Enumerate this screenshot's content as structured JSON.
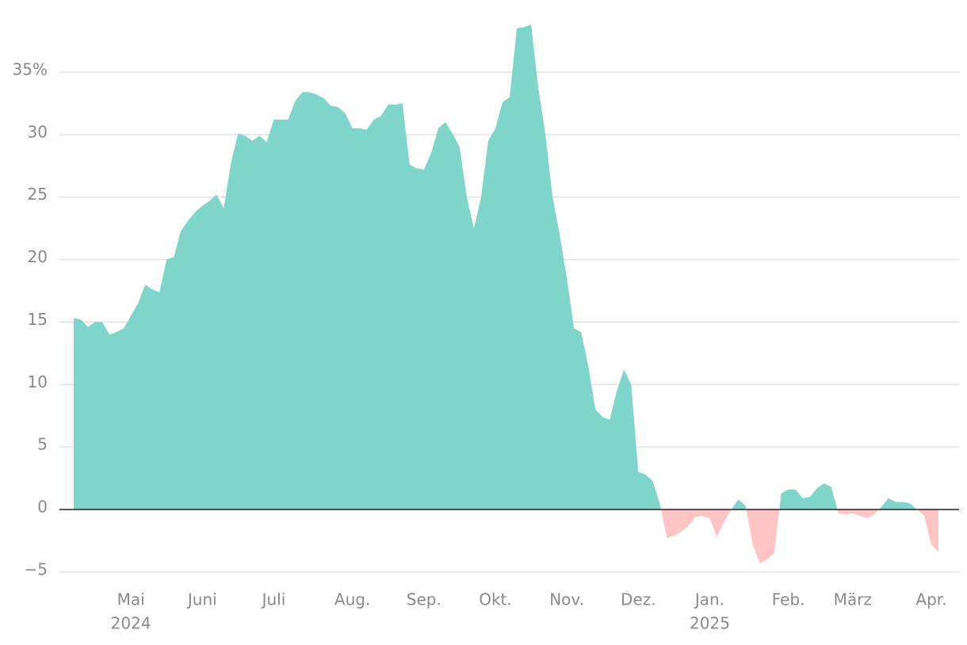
{
  "chart_data": {
    "type": "area",
    "categories": [
      null,
      null,
      null,
      null,
      null,
      null,
      null,
      null,
      "Mai",
      null,
      null,
      null,
      null,
      null,
      null,
      null,
      null,
      null,
      "Juni",
      null,
      null,
      null,
      null,
      null,
      null,
      null,
      null,
      null,
      "Juli",
      null,
      null,
      null,
      null,
      null,
      null,
      null,
      null,
      null,
      null,
      "Aug.",
      null,
      null,
      null,
      null,
      null,
      null,
      null,
      null,
      null,
      "Sep.",
      null,
      null,
      null,
      null,
      null,
      null,
      null,
      null,
      null,
      "Okt.",
      null,
      null,
      null,
      null,
      null,
      null,
      null,
      null,
      null,
      "Nov.",
      null,
      null,
      null,
      null,
      null,
      null,
      null,
      null,
      null,
      "Dez.",
      null,
      null,
      null,
      null,
      null,
      null,
      null,
      null,
      null,
      "Jan.",
      null,
      null,
      null,
      null,
      null,
      null,
      null,
      null,
      null,
      null,
      "Feb.",
      null,
      null,
      null,
      null,
      null,
      null,
      null,
      null,
      "März",
      null,
      null,
      null,
      null,
      null,
      null,
      null,
      null,
      null,
      null,
      "Apr.",
      null
    ],
    "category_years": [
      null,
      null,
      null,
      null,
      null,
      null,
      null,
      null,
      "2024",
      null,
      null,
      null,
      null,
      null,
      null,
      null,
      null,
      null,
      null,
      null,
      null,
      null,
      null,
      null,
      null,
      null,
      null,
      null,
      null,
      null,
      null,
      null,
      null,
      null,
      null,
      null,
      null,
      null,
      null,
      null,
      null,
      null,
      null,
      null,
      null,
      null,
      null,
      null,
      null,
      null,
      null,
      null,
      null,
      null,
      null,
      null,
      null,
      null,
      null,
      null,
      null,
      null,
      null,
      null,
      null,
      null,
      null,
      null,
      null,
      null,
      null,
      null,
      null,
      null,
      null,
      null,
      null,
      null,
      null,
      null,
      null,
      null,
      null,
      null,
      null,
      null,
      null,
      null,
      null,
      "2025",
      null,
      null,
      null,
      null,
      null,
      null,
      null,
      null,
      null,
      null,
      null,
      null,
      null,
      null,
      null,
      null,
      null,
      null,
      null,
      null,
      null,
      null,
      null,
      null,
      null,
      null,
      null,
      null,
      null,
      null,
      null,
      null
    ],
    "values": [
      15.3,
      15.2,
      14.6,
      15.0,
      15.0,
      14.0,
      14.2,
      14.5,
      15.5,
      16.5,
      18.0,
      17.6,
      17.4,
      20.0,
      20.2,
      22.3,
      23.1,
      23.8,
      24.3,
      24.7,
      25.2,
      24.1,
      27.7,
      30.1,
      29.9,
      29.5,
      29.9,
      29.4,
      31.2,
      31.2,
      31.2,
      32.7,
      33.4,
      33.4,
      33.2,
      32.9,
      32.3,
      32.2,
      31.7,
      30.5,
      30.5,
      30.4,
      31.2,
      31.5,
      32.4,
      32.4,
      32.5,
      27.6,
      27.3,
      27.2,
      28.5,
      30.5,
      31.0,
      30.1,
      29.0,
      25.0,
      22.5,
      25.0,
      29.5,
      30.5,
      32.6,
      33.0,
      38.5,
      38.6,
      38.8,
      33.8,
      30.0,
      25.0,
      22.0,
      18.5,
      14.5,
      14.2,
      11.5,
      8.0,
      7.4,
      7.2,
      9.5,
      11.2,
      10.0,
      3.0,
      2.8,
      2.3,
      0.5,
      -2.3,
      -2.1,
      -1.8,
      -1.3,
      -0.6,
      -0.5,
      -0.7,
      -2.2,
      -1.0,
      0.0,
      0.8,
      0.3,
      -2.8,
      -4.3,
      -4.0,
      -3.5,
      1.3,
      1.6,
      1.6,
      0.9,
      1.0,
      1.7,
      2.1,
      1.8,
      -0.3,
      -0.4,
      -0.3,
      -0.5,
      -0.7,
      -0.4,
      0.2,
      0.9,
      0.6,
      0.6,
      0.5,
      0.0,
      -0.5,
      -2.8,
      -3.4
    ],
    "positive_color": "#80d5ca",
    "negative_color": "#ffc4c4",
    "ylim": [
      -5.3,
      39.3
    ],
    "yticks": [
      {
        "value": -5,
        "label": "−5"
      },
      0,
      5,
      10,
      15,
      20,
      25,
      30,
      {
        "value": 35,
        "label": "35%"
      }
    ],
    "grid": true
  }
}
